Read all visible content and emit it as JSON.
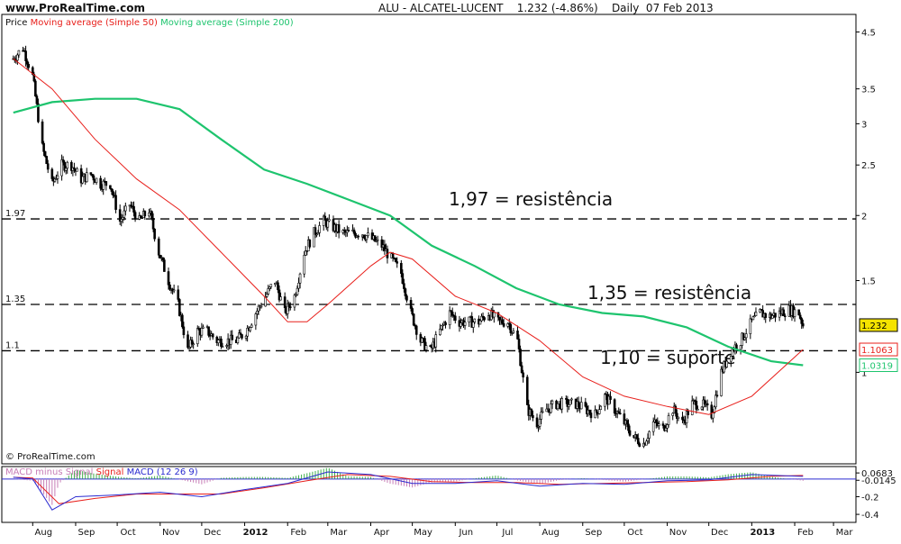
{
  "header": {
    "site": "www.ProRealTime.com",
    "title": "ALU - ALCATEL-LUCENT    1.232 (-4.86%)    Daily  07 Feb 2013"
  },
  "legend": {
    "price_label": "Price",
    "ma50_label": "Moving average (Simple 50)",
    "ma200_label": "Moving average (Simple 200)",
    "ma50_color": "#e8201c",
    "ma200_color": "#1ec46e"
  },
  "copyright": "© ProRealTime.com",
  "macd_legend": {
    "part1": "MACD minus Signal",
    "part2": "Signal",
    "part3": "MACD (12 26 9)",
    "macd_color": "#2a2ad0",
    "signal_color": "#e8201c",
    "hist_color": "#c77db6"
  },
  "chart_data": {
    "type": "candlestick",
    "x_ticks": [
      "Aug",
      "Sep",
      "Oct",
      "Nov",
      "Dec",
      "2012",
      "Feb",
      "Mar",
      "Apr",
      "May",
      "Jun",
      "Jul",
      "Aug",
      "Sep",
      "Oct",
      "Nov",
      "Dec",
      "2013",
      "Feb",
      "Mar"
    ],
    "y_ticks": [
      "4.5",
      "3.5",
      "3",
      "2.5",
      "2",
      "1.5",
      "1"
    ],
    "y_scale": "log",
    "ylim": [
      0.7,
      4.6
    ],
    "last_price_label": "1.232",
    "ma50_value_label": "1.1063",
    "ma200_value_label": "1.0319",
    "levels": [
      {
        "value": 1.97,
        "label": "1.97",
        "annotation": "1,97 = resistência"
      },
      {
        "value": 1.35,
        "label": "1.35",
        "annotation": "1,35 = resistência"
      },
      {
        "value": 1.1,
        "label": "1.1",
        "annotation": "1,10 = suporte"
      }
    ],
    "price_path": [
      [
        "2011-07-18",
        4.0
      ],
      [
        "2011-07-25",
        4.2
      ],
      [
        "2011-08-01",
        3.7
      ],
      [
        "2011-08-08",
        2.7
      ],
      [
        "2011-08-15",
        2.3
      ],
      [
        "2011-08-22",
        2.5
      ],
      [
        "2011-08-29",
        2.5
      ],
      [
        "2011-09-05",
        2.35
      ],
      [
        "2011-09-12",
        2.4
      ],
      [
        "2011-09-19",
        2.3
      ],
      [
        "2011-09-26",
        2.3
      ],
      [
        "2011-10-03",
        1.95
      ],
      [
        "2011-10-10",
        2.1
      ],
      [
        "2011-10-17",
        1.95
      ],
      [
        "2011-10-24",
        2.05
      ],
      [
        "2011-10-31",
        1.7
      ],
      [
        "2011-11-07",
        1.5
      ],
      [
        "2011-11-14",
        1.35
      ],
      [
        "2011-11-21",
        1.1
      ],
      [
        "2011-11-28",
        1.2
      ],
      [
        "2011-12-05",
        1.2
      ],
      [
        "2011-12-12",
        1.15
      ],
      [
        "2011-12-19",
        1.15
      ],
      [
        "2011-12-26",
        1.15
      ],
      [
        "2012-01-02",
        1.2
      ],
      [
        "2012-01-09",
        1.3
      ],
      [
        "2012-01-16",
        1.4
      ],
      [
        "2012-01-23",
        1.5
      ],
      [
        "2012-01-30",
        1.3
      ],
      [
        "2012-02-06",
        1.4
      ],
      [
        "2012-02-13",
        1.7
      ],
      [
        "2012-02-20",
        1.85
      ],
      [
        "2012-02-27",
        1.95
      ],
      [
        "2012-03-05",
        1.9
      ],
      [
        "2012-03-12",
        1.85
      ],
      [
        "2012-03-19",
        1.85
      ],
      [
        "2012-03-26",
        1.85
      ],
      [
        "2012-04-02",
        1.8
      ],
      [
        "2012-04-09",
        1.75
      ],
      [
        "2012-04-16",
        1.65
      ],
      [
        "2012-04-23",
        1.55
      ],
      [
        "2012-04-30",
        1.3
      ],
      [
        "2012-05-07",
        1.15
      ],
      [
        "2012-05-14",
        1.1
      ],
      [
        "2012-05-21",
        1.2
      ],
      [
        "2012-05-28",
        1.3
      ],
      [
        "2012-06-04",
        1.25
      ],
      [
        "2012-06-11",
        1.25
      ],
      [
        "2012-06-18",
        1.25
      ],
      [
        "2012-06-25",
        1.3
      ],
      [
        "2012-07-02",
        1.25
      ],
      [
        "2012-07-09",
        1.25
      ],
      [
        "2012-07-16",
        1.15
      ],
      [
        "2012-07-23",
        0.85
      ],
      [
        "2012-07-30",
        0.8
      ],
      [
        "2012-08-06",
        0.85
      ],
      [
        "2012-08-13",
        0.87
      ],
      [
        "2012-08-20",
        0.87
      ],
      [
        "2012-08-27",
        0.87
      ],
      [
        "2012-09-03",
        0.85
      ],
      [
        "2012-09-10",
        0.83
      ],
      [
        "2012-09-17",
        0.9
      ],
      [
        "2012-09-24",
        0.85
      ],
      [
        "2012-10-01",
        0.8
      ],
      [
        "2012-10-08",
        0.75
      ],
      [
        "2012-10-15",
        0.73
      ],
      [
        "2012-10-22",
        0.8
      ],
      [
        "2012-10-29",
        0.78
      ],
      [
        "2012-11-05",
        0.85
      ],
      [
        "2012-11-12",
        0.8
      ],
      [
        "2012-11-19",
        0.87
      ],
      [
        "2012-11-26",
        0.87
      ],
      [
        "2012-12-03",
        0.83
      ],
      [
        "2012-12-10",
        1.0
      ],
      [
        "2012-12-17",
        1.1
      ],
      [
        "2012-12-24",
        1.15
      ],
      [
        "2013-01-01",
        1.25
      ],
      [
        "2013-01-07",
        1.3
      ],
      [
        "2013-01-14",
        1.28
      ],
      [
        "2013-01-21",
        1.3
      ],
      [
        "2013-01-28",
        1.32
      ],
      [
        "2013-02-04",
        1.3
      ],
      [
        "2013-02-07",
        1.232
      ]
    ],
    "ma50": [
      [
        "2011-07-18",
        4.0
      ],
      [
        "2011-08-15",
        3.5
      ],
      [
        "2011-09-15",
        2.8
      ],
      [
        "2011-10-15",
        2.35
      ],
      [
        "2011-11-15",
        2.05
      ],
      [
        "2011-12-15",
        1.7
      ],
      [
        "2012-01-15",
        1.4
      ],
      [
        "2012-02-01",
        1.25
      ],
      [
        "2012-02-15",
        1.25
      ],
      [
        "2012-03-01",
        1.35
      ],
      [
        "2012-04-01",
        1.6
      ],
      [
        "2012-04-15",
        1.7
      ],
      [
        "2012-05-01",
        1.65
      ],
      [
        "2012-06-01",
        1.4
      ],
      [
        "2012-07-01",
        1.3
      ],
      [
        "2012-08-01",
        1.15
      ],
      [
        "2012-09-01",
        0.98
      ],
      [
        "2012-10-01",
        0.9
      ],
      [
        "2012-11-01",
        0.86
      ],
      [
        "2012-12-01",
        0.83
      ],
      [
        "2013-01-01",
        0.9
      ],
      [
        "2013-02-07",
        1.1063
      ]
    ],
    "ma200": [
      [
        "2011-07-18",
        3.15
      ],
      [
        "2011-08-15",
        3.3
      ],
      [
        "2011-09-15",
        3.35
      ],
      [
        "2011-10-15",
        3.35
      ],
      [
        "2011-11-15",
        3.2
      ],
      [
        "2011-12-15",
        2.8
      ],
      [
        "2012-01-15",
        2.45
      ],
      [
        "2012-02-15",
        2.3
      ],
      [
        "2012-03-15",
        2.15
      ],
      [
        "2012-04-15",
        2.0
      ],
      [
        "2012-05-15",
        1.75
      ],
      [
        "2012-06-15",
        1.6
      ],
      [
        "2012-07-15",
        1.45
      ],
      [
        "2012-08-15",
        1.35
      ],
      [
        "2012-09-15",
        1.3
      ],
      [
        "2012-10-15",
        1.28
      ],
      [
        "2012-11-15",
        1.22
      ],
      [
        "2012-12-15",
        1.12
      ],
      [
        "2013-01-15",
        1.05
      ],
      [
        "2013-02-07",
        1.0319
      ]
    ],
    "macd": {
      "y_ticks": [
        "0.0683",
        "-0.0145",
        "-0.2",
        "-0.4"
      ],
      "ylim": [
        -0.45,
        0.1
      ],
      "macd_points": [
        [
          "2011-07-18",
          0.02
        ],
        [
          "2011-08-01",
          0.0
        ],
        [
          "2011-08-15",
          -0.35
        ],
        [
          "2011-09-01",
          -0.2
        ],
        [
          "2011-10-01",
          -0.18
        ],
        [
          "2011-11-01",
          -0.15
        ],
        [
          "2011-12-01",
          -0.2
        ],
        [
          "2012-01-01",
          -0.12
        ],
        [
          "2012-02-01",
          -0.05
        ],
        [
          "2012-03-01",
          0.08
        ],
        [
          "2012-04-01",
          0.05
        ],
        [
          "2012-05-01",
          -0.05
        ],
        [
          "2012-06-01",
          -0.05
        ],
        [
          "2012-07-01",
          -0.02
        ],
        [
          "2012-08-01",
          -0.08
        ],
        [
          "2012-09-01",
          -0.05
        ],
        [
          "2012-10-01",
          -0.06
        ],
        [
          "2012-11-01",
          -0.02
        ],
        [
          "2012-12-01",
          -0.01
        ],
        [
          "2013-01-01",
          0.05
        ],
        [
          "2013-02-07",
          0.03
        ]
      ],
      "signal_points": [
        [
          "2011-07-18",
          0.02
        ],
        [
          "2011-08-01",
          0.01
        ],
        [
          "2011-08-20",
          -0.28
        ],
        [
          "2011-09-15",
          -0.22
        ],
        [
          "2011-10-15",
          -0.17
        ],
        [
          "2011-11-15",
          -0.17
        ],
        [
          "2011-12-15",
          -0.17
        ],
        [
          "2012-01-15",
          -0.1
        ],
        [
          "2012-02-15",
          -0.02
        ],
        [
          "2012-03-15",
          0.05
        ],
        [
          "2012-04-15",
          0.03
        ],
        [
          "2012-05-15",
          -0.03
        ],
        [
          "2012-06-15",
          -0.04
        ],
        [
          "2012-07-15",
          -0.04
        ],
        [
          "2012-08-15",
          -0.06
        ],
        [
          "2012-09-15",
          -0.05
        ],
        [
          "2012-10-15",
          -0.04
        ],
        [
          "2012-11-15",
          -0.03
        ],
        [
          "2012-12-15",
          -0.01
        ],
        [
          "2013-01-15",
          0.03
        ],
        [
          "2013-02-07",
          0.04
        ]
      ]
    }
  }
}
